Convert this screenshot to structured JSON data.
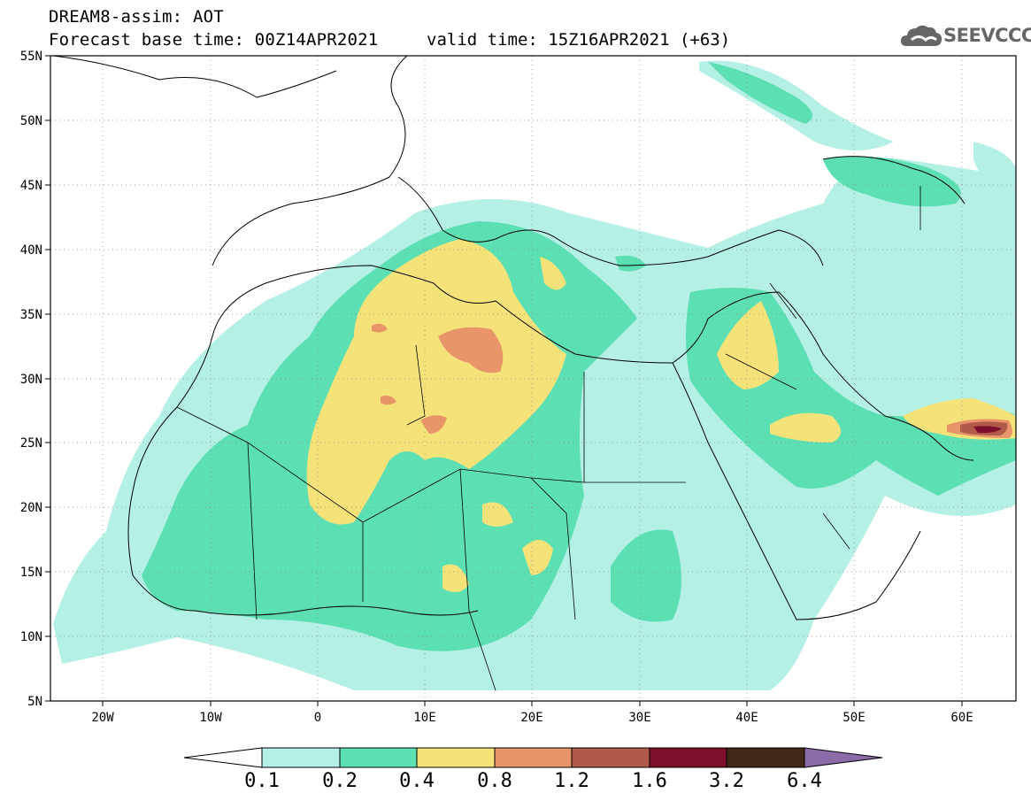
{
  "header": {
    "title": "DREAM8-assim: AOT",
    "base_time": "Forecast base time: 00Z14APR2021",
    "valid_time": "valid time: 15Z16APR2021 (+63)",
    "logo": "SEEVCCC"
  },
  "axes": {
    "lat_labels": [
      "55N",
      "50N",
      "45N",
      "40N",
      "35N",
      "30N",
      "25N",
      "20N",
      "15N",
      "10N",
      "5N"
    ],
    "lon_labels": [
      "20W",
      "10W",
      "0",
      "10E",
      "20E",
      "30E",
      "40E",
      "50E",
      "60E"
    ],
    "lat_range": [
      5,
      55
    ],
    "lon_range": [
      -25,
      65
    ]
  },
  "colorbar": {
    "labels": [
      "0.1",
      "0.2",
      "0.4",
      "0.8",
      "1.2",
      "1.6",
      "3.2",
      "6.4"
    ],
    "colors": [
      "#b4f0e4",
      "#5ddfb4",
      "#f5e37a",
      "#e8956a",
      "#b15a4a",
      "#7b0f2c",
      "#3f2814",
      "#8d6aa8"
    ]
  }
}
